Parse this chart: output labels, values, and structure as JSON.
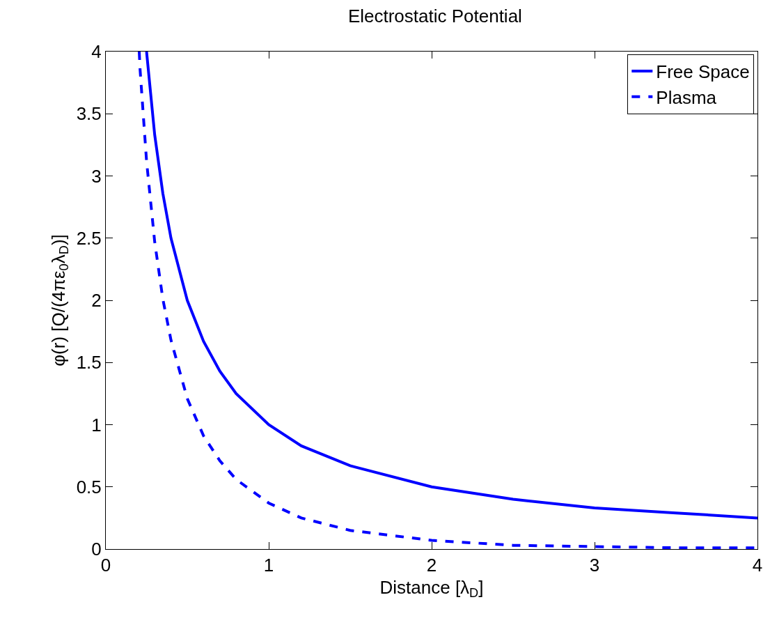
{
  "chart_data": {
    "type": "line",
    "title": "Electrostatic Potential",
    "xlabel": "Distance [λ$_{D}$]",
    "ylabel": "φ(r) [Q/(4πε$_{0}$λ$_{D}$)]",
    "x": [
      0.25,
      0.3,
      0.35,
      0.4,
      0.5,
      0.6,
      0.7,
      0.8,
      1,
      1.2,
      1.5,
      2,
      2.5,
      3,
      3.5,
      4
    ],
    "series": [
      {
        "name": "Free Space",
        "color": "#0000ff",
        "line_style": "solid",
        "values": [
          4,
          3.33,
          2.86,
          2.5,
          2,
          1.67,
          1.43,
          1.25,
          1,
          0.83,
          0.67,
          0.5,
          0.4,
          0.33,
          0.29,
          0.25
        ]
      },
      {
        "name": "Plasma",
        "color": "#0000ff",
        "line_style": "dashed",
        "x": [
          0.205,
          0.21,
          0.25,
          0.3,
          0.35,
          0.4,
          0.5,
          0.6,
          0.7,
          0.8,
          1,
          1.2,
          1.5,
          2,
          2.5,
          3,
          3.5,
          4
        ],
        "values": [
          4,
          3.86,
          3.12,
          2.47,
          2.01,
          1.68,
          1.21,
          0.91,
          0.71,
          0.56,
          0.37,
          0.25,
          0.15,
          0.07,
          0.03,
          0.02,
          0.01,
          0.01
        ]
      }
    ],
    "xlim": [
      0,
      4
    ],
    "xticks": [
      0,
      1,
      2,
      3,
      4
    ],
    "ylim": [
      0,
      4
    ],
    "yticks": [
      0,
      0.5,
      1,
      1.5,
      2,
      2.5,
      3,
      3.5,
      4
    ],
    "grid": false,
    "legend": "top right",
    "marker": "none"
  }
}
